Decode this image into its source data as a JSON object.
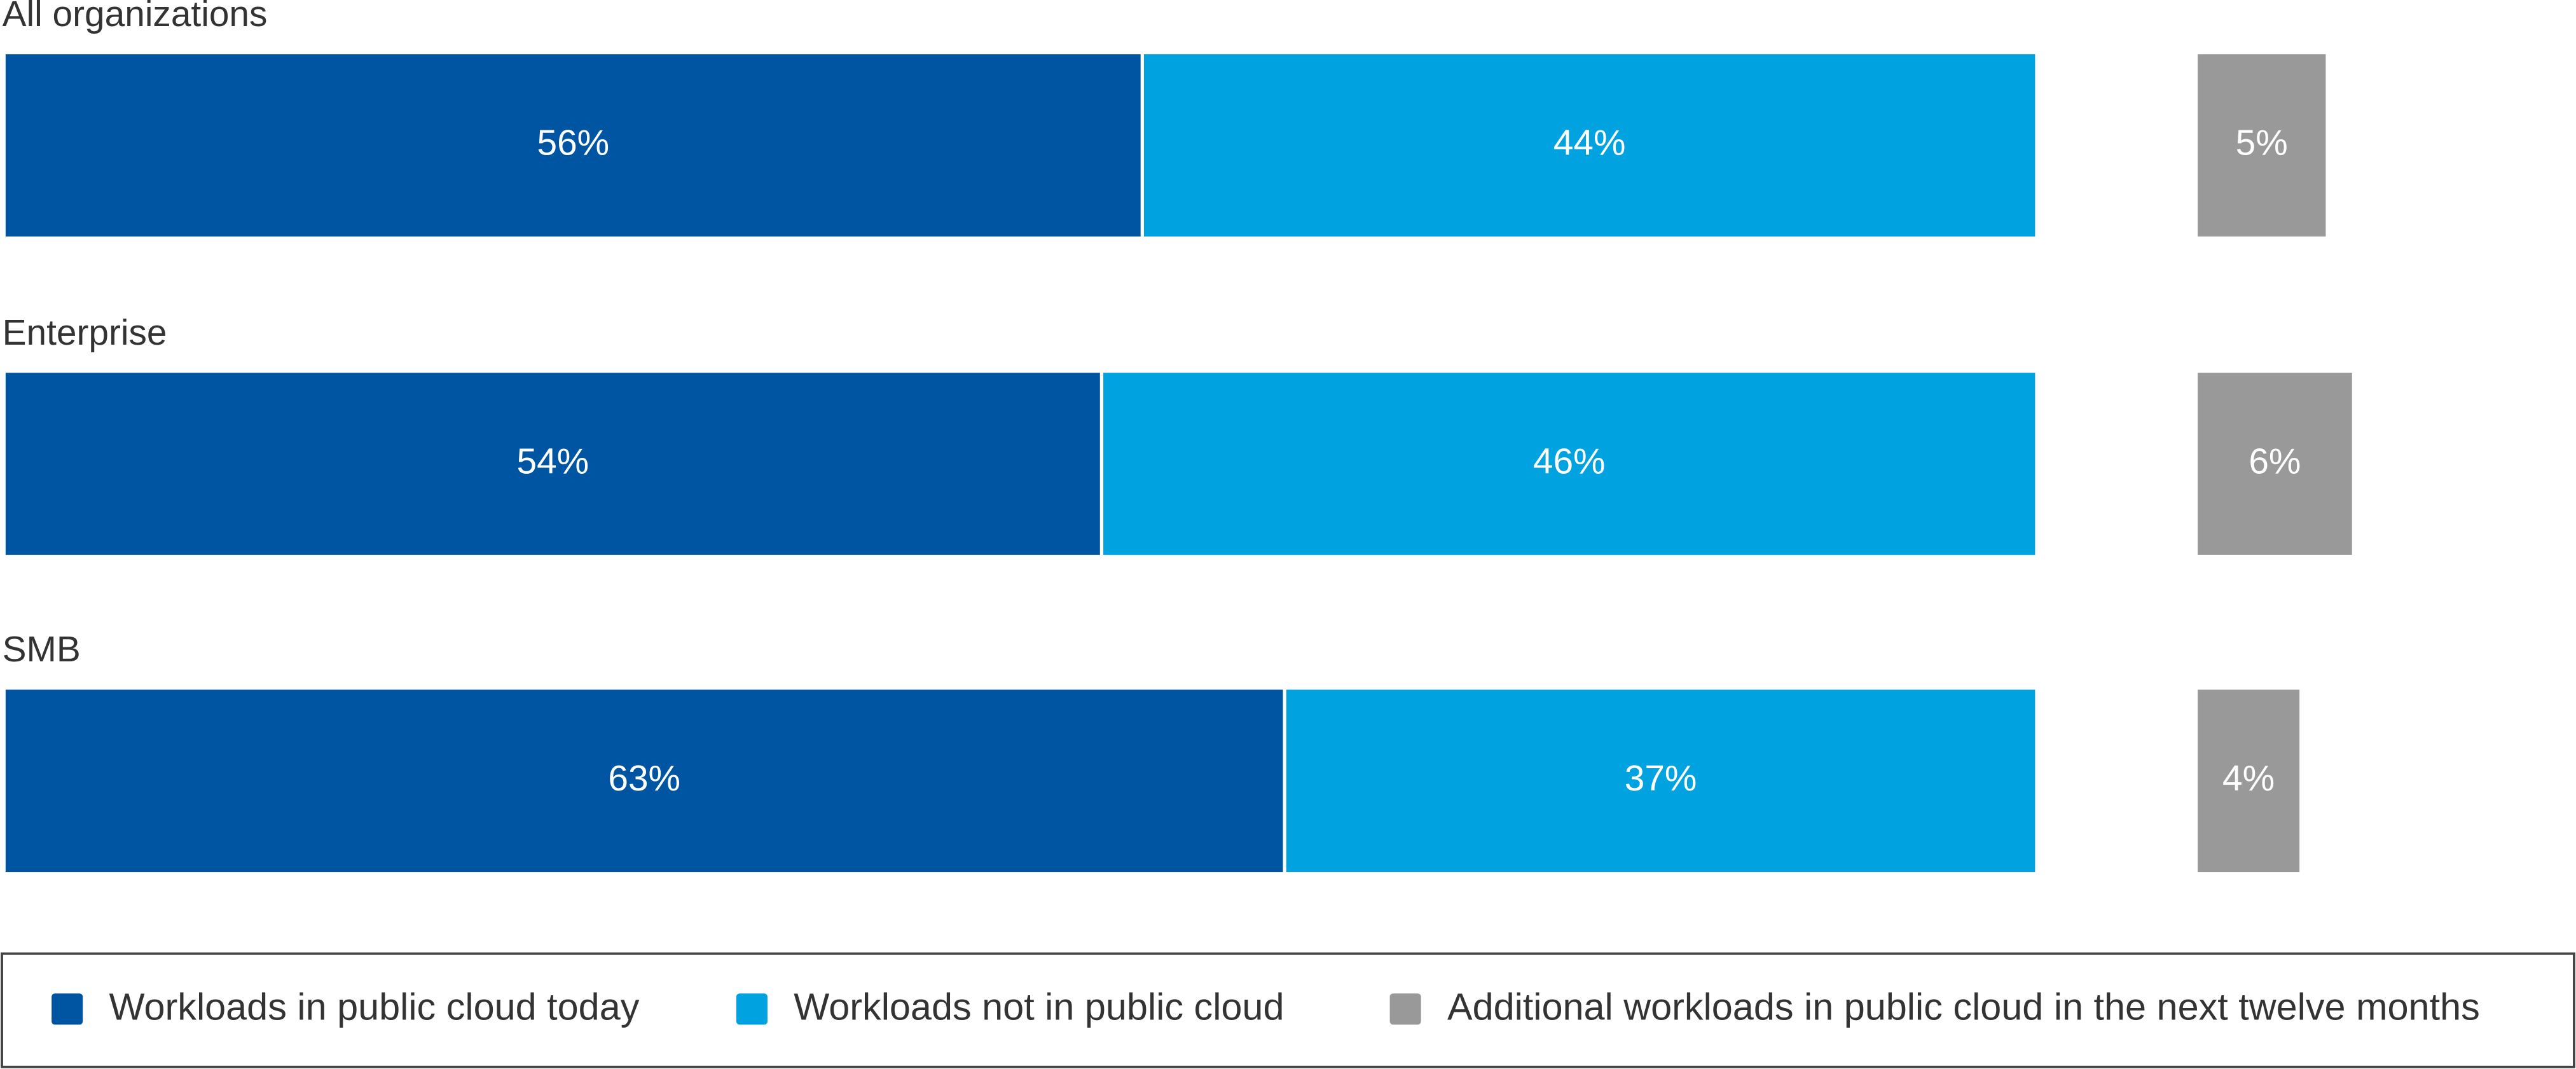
{
  "chart_data": {
    "type": "bar",
    "orientation": "horizontal",
    "stacked": true,
    "categories": [
      "All organizations",
      "Enterprise",
      "SMB"
    ],
    "series": [
      {
        "name": "Workloads in public cloud today",
        "color": "#0055a2",
        "values": [
          56,
          54,
          63
        ],
        "value_labels": [
          "56%",
          "54%",
          "63%"
        ]
      },
      {
        "name": "Workloads not in public cloud",
        "color": "#00a3e0",
        "values": [
          44,
          46,
          37
        ],
        "value_labels": [
          "44%",
          "46%",
          "37%"
        ]
      },
      {
        "name": "Additional workloads in public cloud in the next twelve months",
        "color": "#999999",
        "values": [
          5,
          6,
          4
        ],
        "value_labels": [
          "5%",
          "6%",
          "4%"
        ]
      }
    ],
    "legend": "bottom"
  }
}
